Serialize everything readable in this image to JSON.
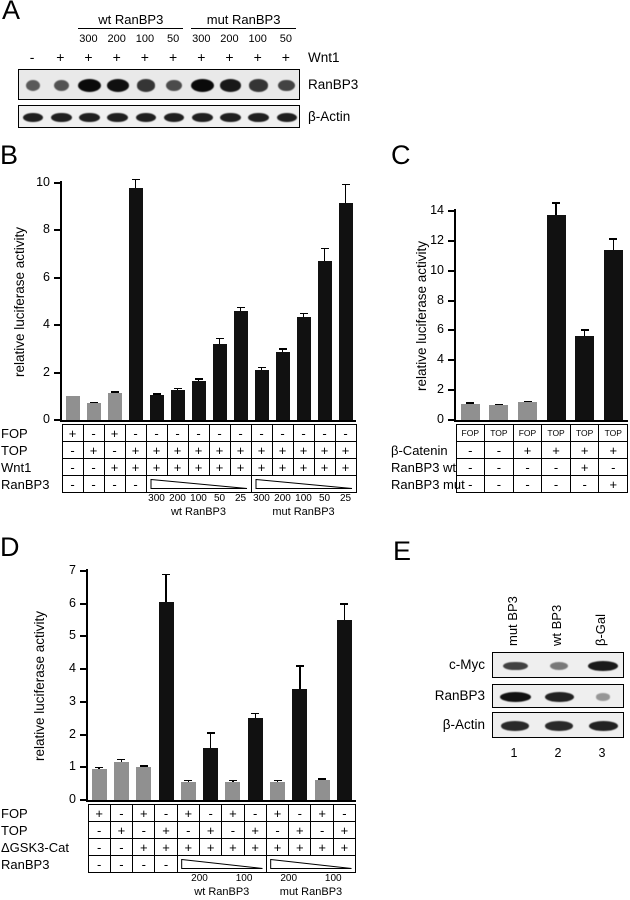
{
  "panelA": {
    "letter": "A",
    "group_labels": [
      "wt RanBP3",
      "mut RanBP3"
    ],
    "dose_labels": [
      "300",
      "200",
      "100",
      "50",
      "300",
      "200",
      "100",
      "50"
    ],
    "condition": {
      "label": "Wnt1",
      "values": [
        "-",
        "+",
        "+",
        "+",
        "+",
        "+",
        "+",
        "+",
        "+",
        "+"
      ]
    },
    "blots": [
      {
        "label": "RanBP3",
        "bands": [
          0.45,
          0.5,
          1.0,
          0.95,
          0.7,
          0.55,
          1.0,
          0.9,
          0.7,
          0.6
        ]
      },
      {
        "label": "β-Actin",
        "bands": [
          0.85,
          0.85,
          0.85,
          0.85,
          0.85,
          0.85,
          0.85,
          0.85,
          0.85,
          0.85
        ]
      }
    ]
  },
  "panelB": {
    "letter": "B"
  },
  "panelC": {
    "letter": "C"
  },
  "panelD": {
    "letter": "D"
  },
  "panelE": {
    "letter": "E",
    "lane_labels": [
      "mut BP3",
      "wt BP3",
      "β-Gal"
    ],
    "blots": [
      {
        "label": "c-Myc",
        "bands": [
          0.65,
          0.3,
          0.9
        ]
      },
      {
        "label": "RanBP3",
        "bands": [
          0.95,
          0.85,
          0.12
        ]
      },
      {
        "label": "β-Actin",
        "bands": [
          0.8,
          0.8,
          0.85
        ]
      }
    ],
    "lane_numbers": [
      "1",
      "2",
      "3"
    ]
  },
  "chart_data": [
    {
      "type": "bar",
      "panel": "B",
      "title": "",
      "ylabel": "relative luciferase activity",
      "xlabel": "",
      "ylim": [
        0,
        10
      ],
      "yticks": [
        0,
        2,
        4,
        6,
        8,
        10
      ],
      "grid": false,
      "values": [
        1.0,
        0.7,
        1.15,
        9.8,
        1.05,
        1.25,
        1.65,
        3.2,
        4.6,
        2.1,
        2.85,
        4.35,
        6.7,
        9.15
      ],
      "errors": [
        0,
        0.05,
        0.05,
        0.35,
        0.05,
        0.08,
        0.1,
        0.25,
        0.15,
        0.12,
        0.15,
        0.15,
        0.55,
        0.8
      ],
      "bar_colors": [
        "#909090",
        "#909090",
        "#909090",
        "#111",
        "#111",
        "#111",
        "#111",
        "#111",
        "#111",
        "#111",
        "#111",
        "#111",
        "#111",
        "#111"
      ],
      "table": {
        "rows": [
          {
            "label": "FOP",
            "cells": [
              "+",
              "-",
              "+",
              "-",
              "-",
              "-",
              "-",
              "-",
              "-",
              "-",
              "-",
              "-",
              "-",
              "-"
            ]
          },
          {
            "label": "TOP",
            "cells": [
              "-",
              "+",
              "-",
              "+",
              "+",
              "+",
              "+",
              "+",
              "+",
              "+",
              "+",
              "+",
              "+",
              "+"
            ]
          },
          {
            "label": "Wnt1",
            "cells": [
              "-",
              "-",
              "+",
              "+",
              "+",
              "+",
              "+",
              "+",
              "+",
              "+",
              "+",
              "+",
              "+",
              "+"
            ]
          },
          {
            "label": "RanBP3",
            "cells": [
              "-",
              "-",
              "-",
              "-"
            ],
            "wedges": [
              {
                "start": 4,
                "span": 5
              },
              {
                "start": 9,
                "span": 5
              }
            ]
          }
        ],
        "doses": {
          "start": 4,
          "span": 1,
          "values": [
            "300",
            "200",
            "100",
            "50",
            "25",
            "300",
            "200",
            "100",
            "50",
            "25"
          ]
        },
        "groups": [
          {
            "label": "wt RanBP3",
            "start": 4,
            "span": 5
          },
          {
            "label": "mut RanBP3",
            "start": 9,
            "span": 5
          }
        ]
      }
    },
    {
      "type": "bar",
      "panel": "C",
      "title": "",
      "ylabel": "relative luciferase activity",
      "xlabel": "",
      "ylim": [
        0,
        14
      ],
      "yticks": [
        0,
        2,
        4,
        6,
        8,
        10,
        12,
        14
      ],
      "grid": false,
      "values": [
        1.1,
        1.0,
        1.2,
        13.7,
        5.65,
        11.4
      ],
      "errors": [
        0.05,
        0.05,
        0.05,
        0.85,
        0.4,
        0.75
      ],
      "bar_colors": [
        "#909090",
        "#909090",
        "#909090",
        "#111",
        "#111",
        "#111"
      ],
      "table": {
        "header_row": [
          "FOP",
          "TOP",
          "FOP",
          "TOP",
          "TOP",
          "TOP"
        ],
        "rows": [
          {
            "label": "β-Catenin",
            "cells": [
              "-",
              "-",
              "+",
              "+",
              "+",
              "+"
            ]
          },
          {
            "label": "RanBP3 wt",
            "cells": [
              "-",
              "-",
              "-",
              "-",
              "+",
              "-"
            ]
          },
          {
            "label": "RanBP3 mut",
            "cells": [
              "-",
              "-",
              "-",
              "-",
              "-",
              "+"
            ]
          }
        ]
      }
    },
    {
      "type": "bar",
      "panel": "D",
      "title": "",
      "ylabel": "relative luciferase activity",
      "xlabel": "",
      "ylim": [
        0,
        7
      ],
      "yticks": [
        0,
        1,
        2,
        3,
        4,
        5,
        6,
        7
      ],
      "grid": false,
      "values": [
        0.95,
        1.15,
        1.0,
        6.05,
        0.55,
        1.6,
        0.55,
        2.5,
        0.55,
        3.4,
        0.6,
        5.5
      ],
      "errors": [
        0.05,
        0.1,
        0.05,
        0.85,
        0.05,
        0.45,
        0.05,
        0.15,
        0.05,
        0.7,
        0.05,
        0.5
      ],
      "bar_colors": [
        "#909090",
        "#909090",
        "#909090",
        "#111",
        "#909090",
        "#111",
        "#909090",
        "#111",
        "#909090",
        "#111",
        "#909090",
        "#111"
      ],
      "table": {
        "rows": [
          {
            "label": "FOP",
            "cells": [
              "+",
              "-",
              "+",
              "-",
              "+",
              "-",
              "+",
              "-",
              "+",
              "-",
              "+",
              "-"
            ]
          },
          {
            "label": "TOP",
            "cells": [
              "-",
              "+",
              "-",
              "+",
              "-",
              "+",
              "-",
              "+",
              "-",
              "+",
              "-",
              "+"
            ]
          },
          {
            "label": "ΔGSK3-Cat",
            "cells": [
              "-",
              "-",
              "+",
              "+",
              "+",
              "+",
              "+",
              "+",
              "+",
              "+",
              "+",
              "+"
            ]
          },
          {
            "label": "RanBP3",
            "cells": [
              "-",
              "-",
              "-",
              "-"
            ],
            "wedges": [
              {
                "start": 4,
                "span": 4
              },
              {
                "start": 8,
                "span": 4
              }
            ]
          }
        ],
        "doses": {
          "start": 4,
          "span": 2,
          "values": [
            "200",
            "100",
            "200",
            "100"
          ]
        },
        "groups": [
          {
            "label": "wt RanBP3",
            "start": 4,
            "span": 4
          },
          {
            "label": "mut RanBP3",
            "start": 8,
            "span": 4
          }
        ]
      }
    }
  ]
}
